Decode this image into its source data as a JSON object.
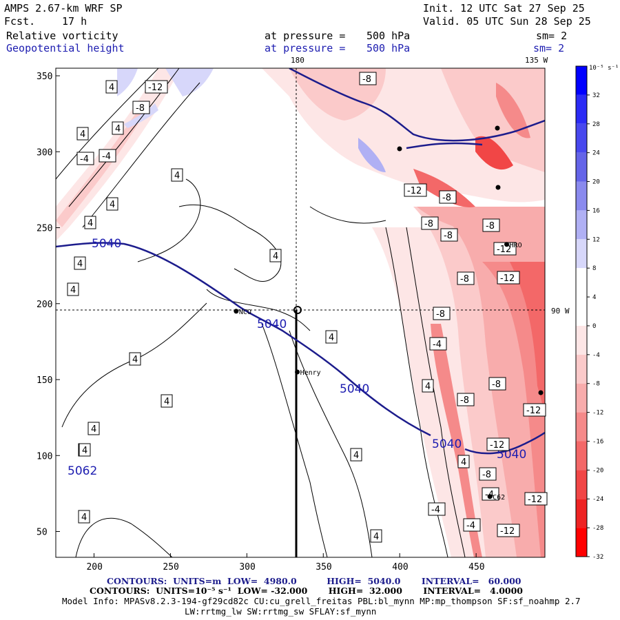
{
  "header": {
    "model_title": "AMPS 2.67-km WRF SP",
    "forecast_label": "Fcst.",
    "forecast_hours": "17 h",
    "init_line": "Init. 12 UTC Sat 27 Sep 25",
    "valid_line": "Valid. 05 UTC Sun 28 Sep 25"
  },
  "fields": [
    {
      "name": "Relative vorticity",
      "pressure_label": "at pressure =",
      "pressure": "500 hPa",
      "smoothing": "sm= 2",
      "color": "#000000"
    },
    {
      "name": "Geopotential height",
      "pressure_label": "at pressure =",
      "pressure": "500 hPa",
      "smoothing": "sm= 2",
      "color": "#1c1cb0"
    }
  ],
  "map": {
    "x_ticks": [
      "200",
      "250",
      "300",
      "350",
      "400",
      "450"
    ],
    "x_tick_values": [
      200,
      250,
      300,
      350,
      400,
      450
    ],
    "y_ticks": [
      "50",
      "100",
      "150",
      "200",
      "250",
      "300",
      "350"
    ],
    "y_tick_values": [
      50,
      100,
      150,
      200,
      250,
      300,
      350
    ],
    "x_range": [
      175,
      495
    ],
    "y_range": [
      33,
      355
    ],
    "longitude_labels": {
      "top_180": "180",
      "top_135w": "135 W",
      "right_90w": "90 W"
    },
    "stations": [
      {
        "label": "NCO",
        "x": 293,
        "y": 195
      },
      {
        "label": "Henry",
        "x": 333,
        "y": 155
      },
      {
        "label": "HRO",
        "x": 470,
        "y": 239
      },
      {
        "label": "C62",
        "x": 459,
        "y": 73
      }
    ],
    "height_labels": [
      "5040",
      "5040",
      "5040",
      "5040",
      "5040",
      "5062"
    ],
    "vorticity_labels": [
      "-12",
      "-8",
      "4",
      "4",
      "4",
      "-4",
      "-4",
      "4",
      "4",
      "4",
      "4",
      "4",
      "4",
      "4",
      "4",
      "4",
      "4",
      "4",
      "4",
      "4",
      "4",
      "4",
      "-8",
      "-12",
      "-8",
      "-8",
      "-8",
      "-8",
      "-12",
      "-8",
      "-12",
      "-8",
      "-4",
      "-8",
      "-8",
      "-12",
      "-12",
      "-8",
      "-4",
      "-4",
      "-4",
      "-12",
      "-12",
      "4",
      "4"
    ]
  },
  "colorbar": {
    "units": "10⁻⁵ s⁻¹",
    "labels": [
      "32",
      "28",
      "24",
      "20",
      "16",
      "12",
      "8",
      "4",
      "0",
      "-4",
      "-8",
      "-12",
      "-16",
      "-20",
      "-24",
      "-28",
      "-32"
    ],
    "values": [
      32,
      28,
      24,
      20,
      16,
      12,
      8,
      4,
      0,
      -4,
      -8,
      -12,
      -16,
      -20,
      -24,
      -28,
      -32
    ],
    "colors_top_to_bottom": [
      "#0000ff",
      "#2b2bf5",
      "#4848ee",
      "#6464e8",
      "#8a8aee",
      "#b0b0f4",
      "#d7d7fa",
      "#ffffff",
      "#ffffff",
      "#fde6e6",
      "#fbcaca",
      "#f8acac",
      "#f58a8a",
      "#f36868",
      "#f14646",
      "#ee2323",
      "#ff0000"
    ]
  },
  "footer": {
    "height_contours": "CONTOURS:  UNITS=m  LOW=  4980.0          HIGH=  5040.0       INTERVAL=   60.000",
    "vort_contours": "CONTOURS:  UNITS=10⁻⁵ s⁻¹  LOW= -32.000       HIGH=  32.000       INTERVAL=   4.0000",
    "model_info_1": "Model Info: MPASv8.2.3-194-gf29cd82c CU:cu_grell_freitas PBL:bl_mynn MP:mp_thompson SF:sf_noahmp 2.7",
    "model_info_2": "LW:rrtmg_lw SW:rrtmg_sw SFLAY:sf_mynn"
  }
}
